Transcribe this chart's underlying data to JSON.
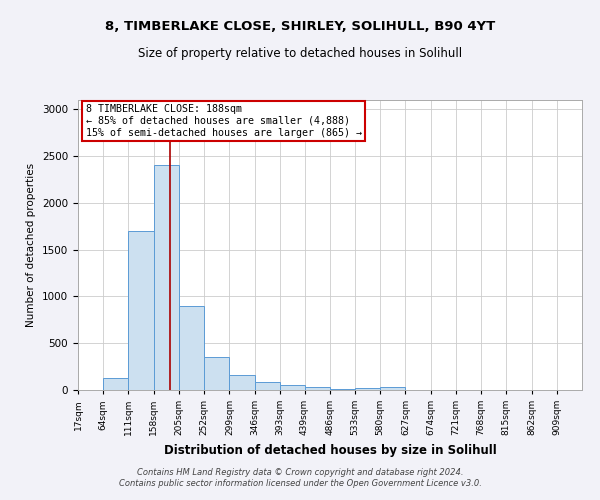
{
  "title1": "8, TIMBERLAKE CLOSE, SHIRLEY, SOLIHULL, B90 4YT",
  "title2": "Size of property relative to detached houses in Solihull",
  "xlabel": "Distribution of detached houses by size in Solihull",
  "ylabel": "Number of detached properties",
  "footer1": "Contains HM Land Registry data © Crown copyright and database right 2024.",
  "footer2": "Contains public sector information licensed under the Open Government Licence v3.0.",
  "bin_edges": [
    17,
    64,
    111,
    158,
    205,
    252,
    299,
    346,
    393,
    439,
    486,
    533,
    580,
    627,
    674,
    721,
    768,
    815,
    862,
    909,
    956
  ],
  "bar_heights": [
    0,
    130,
    1700,
    2400,
    900,
    350,
    160,
    90,
    55,
    30,
    15,
    25,
    35,
    0,
    0,
    0,
    0,
    0,
    0,
    0
  ],
  "bar_color": "#cce0f0",
  "bar_edge_color": "#5b9bd5",
  "vline_x": 188,
  "vline_color": "#aa0000",
  "annotation_line1": "8 TIMBERLAKE CLOSE: 188sqm",
  "annotation_line2": "← 85% of detached houses are smaller (4,888)",
  "annotation_line3": "15% of semi-detached houses are larger (865) →",
  "annotation_box_color": "#cc0000",
  "ylim": [
    0,
    3100
  ],
  "yticks": [
    0,
    500,
    1000,
    1500,
    2000,
    2500,
    3000
  ],
  "bg_color": "#f2f2f8",
  "plot_bg": "#ffffff",
  "grid_color": "#cccccc"
}
